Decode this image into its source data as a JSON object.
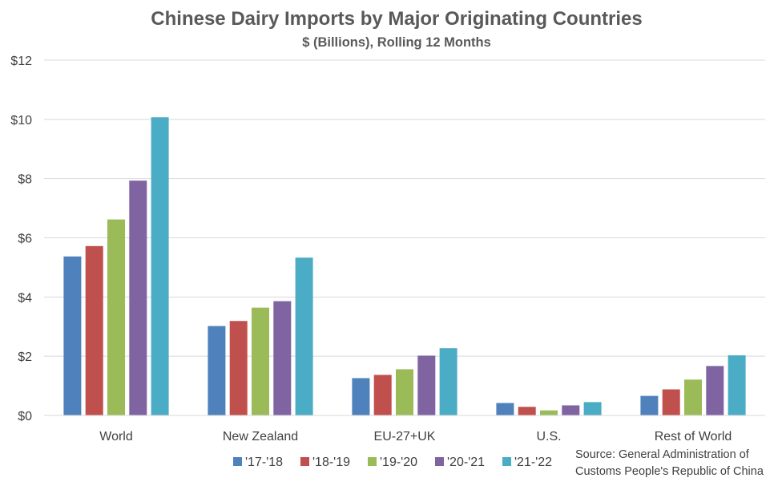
{
  "chart_data": {
    "type": "bar",
    "title": "Chinese Dairy Imports by Major Originating Countries",
    "subtitle": "$ (Billions), Rolling 12 Months",
    "categories": [
      "World",
      "New Zealand",
      "EU-27+UK",
      "U.S.",
      "Rest of World"
    ],
    "series": [
      {
        "name": "'17-'18",
        "color": "#4F81BD",
        "values": [
          5.37,
          3.02,
          1.26,
          0.42,
          0.66
        ]
      },
      {
        "name": "'18-'19",
        "color": "#C0504D",
        "values": [
          5.72,
          3.19,
          1.37,
          0.29,
          0.88
        ]
      },
      {
        "name": "'19-'20",
        "color": "#9BBB59",
        "values": [
          6.62,
          3.64,
          1.56,
          0.17,
          1.21
        ]
      },
      {
        "name": "'20-'21",
        "color": "#8064A2",
        "values": [
          7.93,
          3.86,
          2.02,
          0.34,
          1.67
        ]
      },
      {
        "name": "'21-'22",
        "color": "#4BACC6",
        "values": [
          10.07,
          5.33,
          2.27,
          0.45,
          2.03
        ]
      }
    ],
    "yticks": [
      "$0",
      "$2",
      "$4",
      "$6",
      "$8",
      "$10",
      "$12"
    ],
    "ylim": [
      0,
      12
    ],
    "grid": true,
    "legend_position": "bottom",
    "source_line1": "Source: General Administration of",
    "source_line2": "Customs People's Republic of China"
  }
}
